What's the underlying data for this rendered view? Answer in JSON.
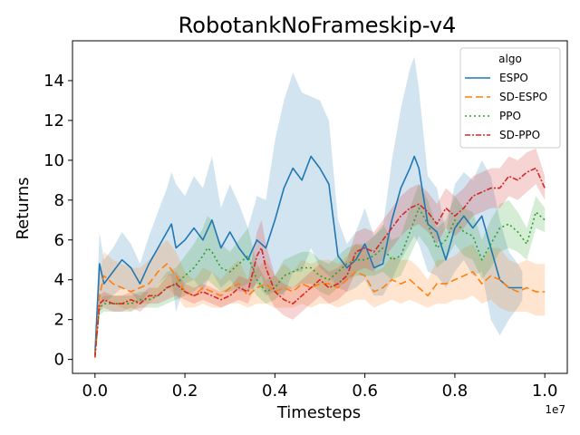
{
  "chart_data": {
    "type": "line",
    "title": "RobotankNoFrameskip-v4",
    "xlabel": "Timesteps",
    "ylabel": "Returns",
    "x_offset_label": "1e7",
    "xlim": [
      -0.05,
      1.05
    ],
    "ylim": [
      -0.7,
      16.0
    ],
    "xticks": [
      0.0,
      0.2,
      0.4,
      0.6,
      0.8,
      1.0
    ],
    "xtick_labels": [
      "0.0",
      "0.2",
      "0.4",
      "0.6",
      "0.8",
      "1.0"
    ],
    "yticks": [
      0,
      2,
      4,
      6,
      8,
      10,
      12,
      14
    ],
    "ytick_labels": [
      "0",
      "2",
      "4",
      "6",
      "8",
      "10",
      "12",
      "14"
    ],
    "grid": false,
    "legend": {
      "title": "algo",
      "placement": "top-right"
    },
    "series": [
      {
        "name": "ESPO",
        "color": "#1f77b4",
        "dash": "solid",
        "x": [
          0.0,
          0.01,
          0.02,
          0.04,
          0.06,
          0.08,
          0.1,
          0.12,
          0.14,
          0.16,
          0.17,
          0.18,
          0.2,
          0.22,
          0.24,
          0.26,
          0.28,
          0.3,
          0.32,
          0.34,
          0.36,
          0.38,
          0.4,
          0.42,
          0.44,
          0.46,
          0.48,
          0.5,
          0.52,
          0.54,
          0.56,
          0.58,
          0.6,
          0.62,
          0.64,
          0.66,
          0.68,
          0.7,
          0.71,
          0.72,
          0.74,
          0.76,
          0.78,
          0.8,
          0.82,
          0.84,
          0.86,
          0.88,
          0.9,
          0.92,
          0.94,
          0.95
        ],
        "values": [
          0.3,
          4.8,
          3.8,
          4.4,
          5.0,
          4.6,
          3.8,
          4.8,
          5.6,
          6.4,
          6.8,
          5.6,
          6.0,
          6.6,
          6.0,
          7.0,
          5.6,
          6.4,
          5.6,
          5.0,
          6.0,
          5.6,
          7.0,
          8.6,
          9.6,
          9.0,
          10.2,
          9.6,
          8.8,
          5.2,
          4.6,
          5.0,
          5.8,
          4.6,
          4.8,
          7.0,
          8.6,
          9.6,
          10.2,
          9.6,
          6.8,
          6.4,
          5.0,
          6.6,
          7.2,
          6.6,
          7.2,
          5.6,
          4.0,
          3.6,
          3.6,
          3.6
        ],
        "band_low": [
          0.0,
          3.2,
          2.8,
          3.2,
          3.6,
          3.4,
          2.8,
          3.4,
          3.8,
          4.2,
          4.2,
          2.4,
          3.8,
          4.0,
          3.4,
          4.4,
          3.6,
          4.0,
          3.4,
          3.4,
          3.8,
          3.2,
          3.4,
          3.2,
          4.4,
          4.4,
          5.6,
          4.6,
          4.2,
          3.6,
          3.4,
          3.6,
          4.0,
          3.2,
          3.2,
          4.0,
          5.0,
          5.8,
          6.2,
          5.8,
          4.4,
          4.2,
          3.6,
          4.4,
          5.0,
          4.2,
          4.4,
          2.0,
          1.2,
          2.0,
          2.6,
          3.0
        ],
        "band_high": [
          0.8,
          6.4,
          5.0,
          5.6,
          6.4,
          5.8,
          4.8,
          6.2,
          7.4,
          8.6,
          9.4,
          8.8,
          8.2,
          9.2,
          8.6,
          10.2,
          7.6,
          8.8,
          7.8,
          6.6,
          8.2,
          8.0,
          11.0,
          13.0,
          14.4,
          13.4,
          13.2,
          13.0,
          12.0,
          7.0,
          5.8,
          6.4,
          7.6,
          6.2,
          6.6,
          10.0,
          12.6,
          14.6,
          15.2,
          13.6,
          9.2,
          8.6,
          6.4,
          8.8,
          9.4,
          9.0,
          10.0,
          9.2,
          7.0,
          5.4,
          4.8,
          4.4
        ]
      },
      {
        "name": "SD-ESPO",
        "color": "#ff7f0e",
        "dash": "8,4",
        "x": [
          0.0,
          0.01,
          0.02,
          0.04,
          0.06,
          0.08,
          0.1,
          0.12,
          0.14,
          0.16,
          0.18,
          0.2,
          0.22,
          0.24,
          0.26,
          0.28,
          0.3,
          0.32,
          0.34,
          0.36,
          0.38,
          0.4,
          0.42,
          0.44,
          0.46,
          0.48,
          0.5,
          0.52,
          0.54,
          0.56,
          0.58,
          0.6,
          0.62,
          0.64,
          0.66,
          0.68,
          0.7,
          0.72,
          0.74,
          0.76,
          0.78,
          0.8,
          0.82,
          0.84,
          0.86,
          0.88,
          0.9,
          0.92,
          0.94,
          0.96,
          0.98,
          1.0
        ],
        "values": [
          0.2,
          3.2,
          4.2,
          3.8,
          3.6,
          3.4,
          3.6,
          3.8,
          4.4,
          4.8,
          4.2,
          3.4,
          3.2,
          3.6,
          3.4,
          3.2,
          3.6,
          3.8,
          3.2,
          3.6,
          3.8,
          3.4,
          3.6,
          3.4,
          3.8,
          3.6,
          3.8,
          3.8,
          3.6,
          4.0,
          4.4,
          4.2,
          3.4,
          3.6,
          4.0,
          3.8,
          4.0,
          3.6,
          3.2,
          3.8,
          3.8,
          4.0,
          4.2,
          4.4,
          3.8,
          4.2,
          4.0,
          3.6,
          3.4,
          3.6,
          3.4,
          3.4
        ],
        "band_low": [
          0.0,
          2.4,
          3.0,
          2.8,
          2.6,
          2.4,
          2.8,
          2.8,
          3.2,
          3.6,
          3.2,
          2.6,
          2.6,
          2.8,
          2.6,
          2.6,
          2.8,
          2.8,
          2.6,
          2.8,
          2.8,
          2.6,
          2.6,
          2.6,
          2.8,
          2.6,
          2.8,
          2.8,
          2.6,
          2.8,
          3.0,
          3.0,
          2.6,
          2.8,
          3.0,
          2.8,
          3.0,
          2.8,
          2.6,
          2.8,
          2.8,
          3.0,
          3.0,
          3.2,
          2.8,
          3.0,
          2.6,
          2.4,
          2.4,
          2.4,
          2.2,
          2.2
        ],
        "band_high": [
          0.6,
          4.2,
          5.4,
          5.0,
          4.8,
          4.6,
          4.6,
          5.0,
          5.6,
          6.0,
          5.4,
          4.4,
          4.0,
          4.6,
          4.4,
          4.0,
          4.6,
          5.0,
          4.0,
          4.6,
          5.0,
          4.2,
          4.8,
          4.4,
          5.0,
          4.8,
          5.0,
          5.0,
          4.8,
          5.2,
          5.8,
          5.6,
          4.4,
          4.6,
          5.2,
          5.0,
          5.0,
          4.6,
          4.0,
          5.0,
          5.0,
          5.2,
          5.6,
          5.8,
          5.0,
          5.6,
          5.6,
          5.0,
          4.8,
          5.0,
          4.8,
          4.8
        ]
      },
      {
        "name": "PPO",
        "color": "#2ca02c",
        "dash": "2,3",
        "x": [
          0.0,
          0.01,
          0.02,
          0.04,
          0.06,
          0.08,
          0.1,
          0.12,
          0.14,
          0.16,
          0.18,
          0.2,
          0.22,
          0.24,
          0.25,
          0.26,
          0.28,
          0.3,
          0.32,
          0.34,
          0.36,
          0.38,
          0.4,
          0.42,
          0.44,
          0.46,
          0.48,
          0.5,
          0.52,
          0.54,
          0.56,
          0.58,
          0.6,
          0.62,
          0.64,
          0.66,
          0.68,
          0.7,
          0.72,
          0.74,
          0.76,
          0.78,
          0.8,
          0.82,
          0.84,
          0.86,
          0.88,
          0.9,
          0.92,
          0.94,
          0.96,
          0.98,
          1.0
        ],
        "values": [
          0.2,
          2.6,
          2.8,
          2.8,
          2.8,
          2.8,
          3.0,
          3.0,
          3.2,
          3.6,
          3.8,
          4.2,
          4.6,
          5.2,
          5.6,
          5.4,
          4.6,
          4.4,
          4.8,
          5.2,
          4.0,
          3.4,
          3.6,
          4.2,
          4.4,
          4.6,
          4.6,
          4.2,
          4.0,
          4.4,
          4.8,
          5.0,
          5.0,
          5.2,
          5.6,
          5.0,
          5.2,
          6.4,
          7.6,
          6.8,
          5.6,
          6.0,
          7.0,
          6.4,
          6.2,
          5.0,
          5.8,
          6.6,
          6.8,
          6.4,
          5.8,
          7.4,
          7.0
        ],
        "band_low": [
          0.0,
          2.2,
          2.4,
          2.4,
          2.4,
          2.4,
          2.6,
          2.6,
          2.6,
          2.8,
          3.0,
          3.2,
          3.4,
          3.8,
          4.0,
          3.8,
          3.4,
          3.4,
          3.6,
          3.8,
          3.2,
          2.8,
          3.0,
          3.4,
          3.6,
          3.8,
          3.8,
          3.4,
          3.2,
          3.6,
          4.0,
          4.2,
          4.2,
          4.2,
          4.4,
          4.0,
          4.2,
          5.2,
          6.2,
          5.6,
          4.6,
          5.0,
          5.8,
          5.2,
          5.0,
          4.0,
          4.6,
          5.4,
          5.6,
          5.4,
          5.0,
          6.6,
          6.4
        ],
        "band_high": [
          0.4,
          3.0,
          3.2,
          3.2,
          3.2,
          3.2,
          3.4,
          3.4,
          3.8,
          4.4,
          4.6,
          5.2,
          5.8,
          6.6,
          7.2,
          7.0,
          5.8,
          5.4,
          6.0,
          6.6,
          4.8,
          4.0,
          4.2,
          5.0,
          5.2,
          5.4,
          5.4,
          5.0,
          4.8,
          5.2,
          5.6,
          5.8,
          5.8,
          6.2,
          6.8,
          6.0,
          6.2,
          7.6,
          8.8,
          8.0,
          6.6,
          7.0,
          8.2,
          7.6,
          7.4,
          6.0,
          7.0,
          7.8,
          8.0,
          7.4,
          6.6,
          8.2,
          7.6
        ]
      },
      {
        "name": "SD-PPO",
        "color": "#d62728",
        "dash": "6,2,2,2",
        "x": [
          0.0,
          0.01,
          0.02,
          0.04,
          0.06,
          0.08,
          0.1,
          0.12,
          0.14,
          0.16,
          0.18,
          0.2,
          0.22,
          0.24,
          0.26,
          0.28,
          0.3,
          0.32,
          0.34,
          0.36,
          0.37,
          0.38,
          0.4,
          0.42,
          0.44,
          0.46,
          0.48,
          0.5,
          0.52,
          0.54,
          0.56,
          0.58,
          0.6,
          0.62,
          0.64,
          0.66,
          0.68,
          0.7,
          0.72,
          0.74,
          0.76,
          0.78,
          0.8,
          0.82,
          0.84,
          0.86,
          0.88,
          0.9,
          0.92,
          0.94,
          0.96,
          0.98,
          1.0
        ],
        "values": [
          0.1,
          2.8,
          3.0,
          2.8,
          2.8,
          3.0,
          2.8,
          3.2,
          3.2,
          3.6,
          3.8,
          3.4,
          3.2,
          3.4,
          3.2,
          3.0,
          3.2,
          3.6,
          3.4,
          5.2,
          5.6,
          4.6,
          3.4,
          3.0,
          2.8,
          3.2,
          3.6,
          4.0,
          3.6,
          3.8,
          4.2,
          5.4,
          5.6,
          5.4,
          6.0,
          6.6,
          7.2,
          7.6,
          7.8,
          7.4,
          6.8,
          7.6,
          7.2,
          7.6,
          8.2,
          8.4,
          8.6,
          8.6,
          9.2,
          9.0,
          9.4,
          9.6,
          8.6
        ],
        "band_low": [
          0.0,
          2.4,
          2.6,
          2.4,
          2.4,
          2.6,
          2.4,
          2.8,
          2.8,
          3.0,
          3.2,
          3.0,
          2.8,
          3.0,
          2.8,
          2.6,
          2.8,
          3.0,
          2.8,
          4.0,
          4.2,
          3.4,
          2.6,
          2.2,
          2.0,
          2.4,
          2.8,
          3.2,
          2.8,
          3.0,
          3.4,
          4.4,
          4.6,
          4.4,
          5.0,
          5.6,
          6.2,
          6.6,
          6.8,
          6.4,
          5.8,
          6.6,
          6.2,
          6.6,
          7.2,
          7.4,
          7.6,
          7.6,
          8.2,
          8.0,
          8.4,
          8.8,
          8.0
        ],
        "band_high": [
          0.2,
          3.2,
          3.4,
          3.2,
          3.2,
          3.4,
          3.2,
          3.6,
          3.6,
          4.2,
          4.4,
          3.8,
          3.6,
          3.8,
          3.6,
          3.4,
          3.6,
          4.2,
          4.0,
          6.4,
          7.0,
          5.8,
          4.2,
          3.8,
          3.6,
          4.0,
          4.4,
          4.8,
          4.4,
          4.6,
          5.0,
          6.4,
          6.6,
          6.4,
          7.0,
          7.6,
          8.2,
          8.6,
          8.8,
          8.4,
          7.8,
          8.6,
          8.2,
          8.6,
          9.2,
          9.4,
          9.6,
          9.6,
          10.2,
          10.0,
          10.4,
          10.6,
          9.2
        ]
      }
    ]
  }
}
